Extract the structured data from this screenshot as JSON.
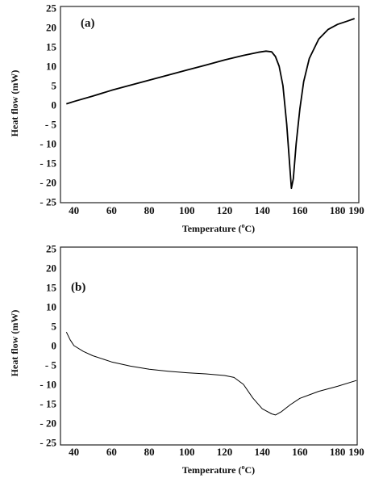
{
  "chart_data": [
    {
      "type": "line",
      "panel_label": "(a)",
      "xlabel": "Temperature (",
      "xlabel_super": "o",
      "xlabel_unit": "C)",
      "ylabel": "Heat flow (mW)",
      "xlim": [
        35,
        190
      ],
      "ylim": [
        -25,
        25
      ],
      "x_ticks": [
        40,
        60,
        80,
        100,
        120,
        140,
        160,
        180,
        190
      ],
      "y_ticks": [
        25,
        20,
        15,
        10,
        5,
        0,
        -5,
        -10,
        -15,
        -20,
        -25
      ],
      "y_tick_labels": [
        "25",
        "20",
        "15",
        "10",
        "5",
        "0",
        "- 5",
        "- 10",
        "- 15",
        "- 20",
        "- 25"
      ],
      "grid": false,
      "series": [
        {
          "points": [
            [
              36,
              0.3
            ],
            [
              40,
              0.9
            ],
            [
              50,
              2.3
            ],
            [
              60,
              3.8
            ],
            [
              70,
              5.1
            ],
            [
              80,
              6.4
            ],
            [
              90,
              7.7
            ],
            [
              100,
              9.0
            ],
            [
              110,
              10.3
            ],
            [
              120,
              11.6
            ],
            [
              130,
              12.8
            ],
            [
              138,
              13.6
            ],
            [
              142,
              13.9
            ],
            [
              145,
              13.7
            ],
            [
              147,
              12.5
            ],
            [
              149,
              10
            ],
            [
              151,
              5
            ],
            [
              153,
              -5
            ],
            [
              154.5,
              -15
            ],
            [
              155.5,
              -21.5
            ],
            [
              156.5,
              -19
            ],
            [
              158,
              -10
            ],
            [
              160,
              -1
            ],
            [
              162,
              6
            ],
            [
              165,
              12
            ],
            [
              170,
              17
            ],
            [
              175,
              19.5
            ],
            [
              180,
              20.8
            ],
            [
              185,
              21.6
            ],
            [
              189,
              22.3
            ]
          ]
        }
      ]
    },
    {
      "type": "line",
      "panel_label": "(b)",
      "xlabel": "Temperature (",
      "xlabel_super": "o",
      "xlabel_unit": "C)",
      "ylabel": "Heat flow (mW)",
      "xlim": [
        35,
        190
      ],
      "ylim": [
        -25,
        25
      ],
      "x_ticks": [
        40,
        60,
        80,
        100,
        120,
        140,
        160,
        180,
        190
      ],
      "y_ticks": [
        25,
        20,
        15,
        10,
        5,
        0,
        -5,
        -10,
        -15,
        -20,
        -25
      ],
      "y_tick_labels": [
        "25",
        "20",
        "15",
        "10",
        "5",
        "0",
        "- 5",
        "- 10",
        "- 15",
        "- 20",
        "- 25"
      ],
      "grid": false,
      "series": [
        {
          "points": [
            [
              36,
              3.5
            ],
            [
              38,
              1.5
            ],
            [
              40,
              0
            ],
            [
              45,
              -1.5
            ],
            [
              50,
              -2.6
            ],
            [
              60,
              -4.2
            ],
            [
              70,
              -5.3
            ],
            [
              80,
              -6.1
            ],
            [
              90,
              -6.6
            ],
            [
              100,
              -7.0
            ],
            [
              110,
              -7.3
            ],
            [
              120,
              -7.7
            ],
            [
              125,
              -8.2
            ],
            [
              130,
              -10
            ],
            [
              135,
              -13.5
            ],
            [
              140,
              -16.3
            ],
            [
              145,
              -17.6
            ],
            [
              147,
              -17.9
            ],
            [
              150,
              -17.1
            ],
            [
              155,
              -15.2
            ],
            [
              160,
              -13.6
            ],
            [
              170,
              -11.8
            ],
            [
              180,
              -10.5
            ],
            [
              190,
              -9.0
            ]
          ]
        }
      ]
    }
  ]
}
